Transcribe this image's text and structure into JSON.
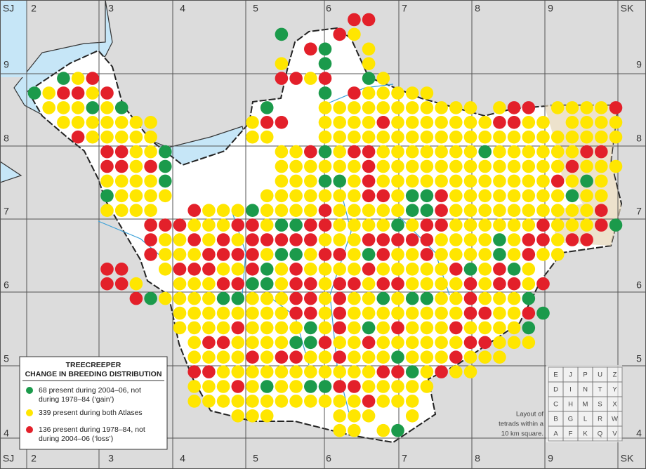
{
  "grid_labels": {
    "top": [
      "SJ",
      "2",
      "3",
      "4",
      "5",
      "6",
      "7",
      "8",
      "9",
      "SK"
    ],
    "left": [
      "9",
      "8",
      "7",
      "6",
      "5",
      "4"
    ]
  },
  "legend": {
    "title": [
      "TREECREEPER",
      "CHANGE IN BREEDING DISTRIBUTION"
    ],
    "items": [
      {
        "color": "#1b9a4b",
        "lines": [
          "68 present during 2004–06, not",
          "during 1978–84 (‘gain’)"
        ]
      },
      {
        "color": "#ffe600",
        "lines": [
          "339 present during both Atlases"
        ]
      },
      {
        "color": "#e3202a",
        "lines": [
          "136 present during 1978–84, not",
          "during 2004–06 (‘loss’)"
        ]
      }
    ]
  },
  "tetrad_layout": {
    "rows": [
      [
        "E",
        "J",
        "P",
        "U",
        "Z"
      ],
      [
        "D",
        "I",
        "N",
        "T",
        "Y"
      ],
      [
        "C",
        "H",
        "M",
        "S",
        "X"
      ],
      [
        "B",
        "G",
        "L",
        "R",
        "W"
      ],
      [
        "A",
        "F",
        "K",
        "Q",
        "V"
      ]
    ],
    "caption": [
      "Layout of",
      "tetrads within a",
      "10 km square."
    ]
  }
}
